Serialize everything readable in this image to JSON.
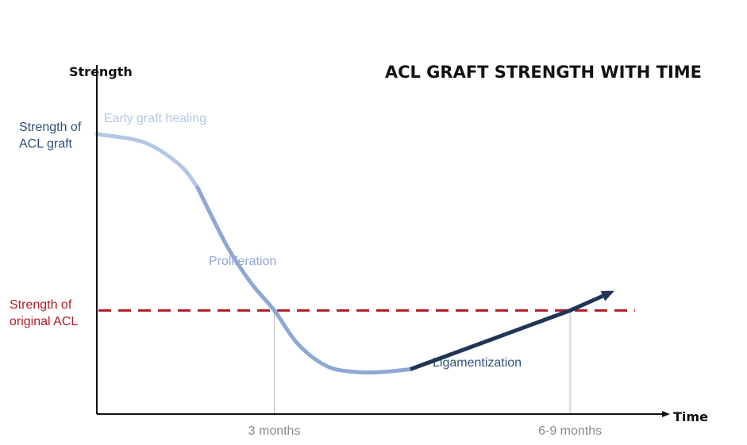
{
  "colors": {
    "axis": "#111111",
    "reference": "#b01c24",
    "guide": "#b9b9b9",
    "phase_early": "#b4c7e4",
    "phase_proliferation": "#8fa7d4",
    "phase_ligamentization": "#1f3556",
    "label_dark": "#2f4f7a"
  },
  "chart_data": {
    "type": "line",
    "title": "ACL GRAFT STRENGTH WITH TIME",
    "xlabel": "Time",
    "ylabel": "Strength",
    "y_labels": {
      "graft": [
        "Strength of",
        "ACL  graft"
      ],
      "original": [
        "Strength of",
        "original ACL"
      ]
    },
    "x_ticks": [
      {
        "label": "3 months",
        "x": 3
      },
      {
        "label": "6-9 months",
        "x": 8
      }
    ],
    "xlim": [
      0,
      9.3
    ],
    "ylim": [
      0,
      100
    ],
    "reference_line": {
      "name": "original ACL",
      "y": 37
    },
    "phases": [
      {
        "name": "Early graft healing",
        "points": [
          [
            0,
            100
          ],
          [
            0.8,
            97
          ],
          [
            1.4,
            89
          ],
          [
            1.7,
            81
          ]
        ]
      },
      {
        "name": "Proliferation",
        "points": [
          [
            1.7,
            81
          ],
          [
            2.2,
            60
          ],
          [
            2.6,
            47
          ],
          [
            3.0,
            37
          ],
          [
            3.4,
            25
          ],
          [
            3.9,
            17
          ],
          [
            4.4,
            15
          ],
          [
            4.8,
            15
          ],
          [
            5.3,
            16
          ]
        ]
      },
      {
        "name": "Ligamentization",
        "points": [
          [
            5.3,
            16
          ],
          [
            8.0,
            37
          ],
          [
            8.75,
            44
          ]
        ],
        "arrow": true
      }
    ]
  }
}
